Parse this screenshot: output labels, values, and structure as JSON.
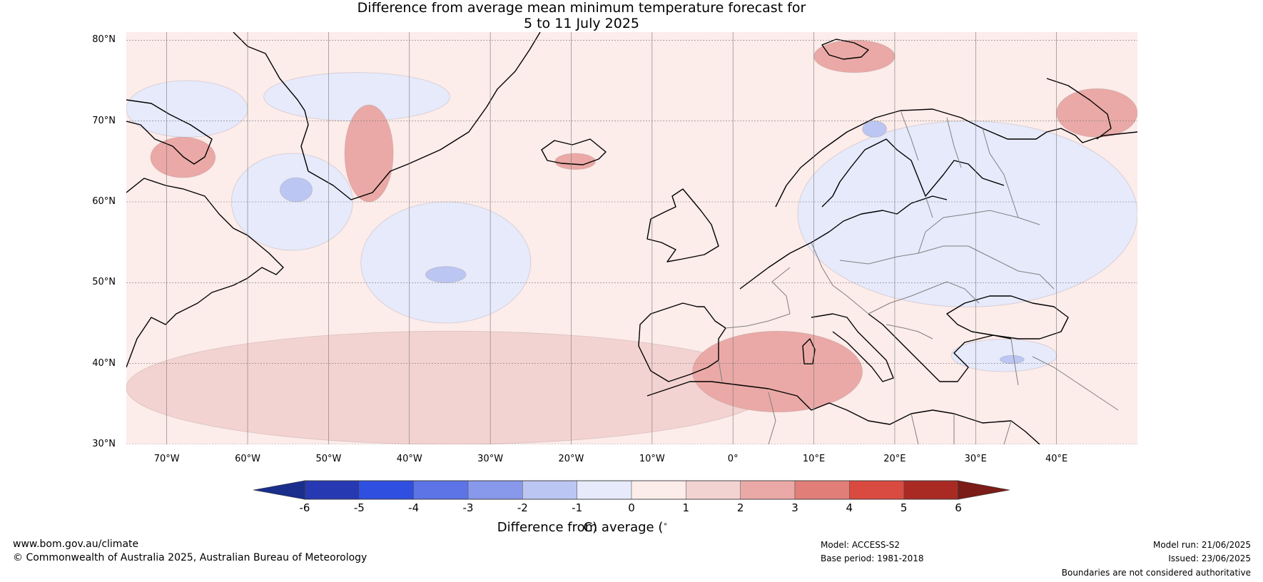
{
  "title": {
    "line1": "Difference from average mean minimum temperature forecast for",
    "line2": "5 to 11 July 2025"
  },
  "map": {
    "projection": "equirectangular",
    "lon_range": [
      -75,
      50
    ],
    "lat_range": [
      30,
      81
    ],
    "gridlines": true,
    "lat_labels": [
      "80°N",
      "70°N",
      "60°N",
      "50°N",
      "40°N",
      "30°N"
    ],
    "lat_values": [
      80,
      70,
      60,
      50,
      40,
      30
    ],
    "lon_labels": [
      "70°W",
      "60°W",
      "50°W",
      "40°W",
      "30°W",
      "20°W",
      "10°W",
      "0°",
      "10°E",
      "20°E",
      "30°E",
      "40°E"
    ],
    "lon_values": [
      -70,
      -60,
      -50,
      -40,
      -30,
      -20,
      -10,
      0,
      10,
      20,
      30,
      40
    ],
    "background_class": "0 to 1",
    "anomaly_regions": [
      {
        "name": "Arctic north of Greenland",
        "class": "-1 to 0",
        "lon": [
          -58,
          -35
        ],
        "lat": [
          70,
          76
        ]
      },
      {
        "name": "Baffin Bay",
        "class": "-1 to 0",
        "lon": [
          -75,
          -60
        ],
        "lat": [
          68,
          75
        ]
      },
      {
        "name": "Labrador Sea",
        "class": "-1 to 0",
        "lon": [
          -62,
          -47
        ],
        "lat": [
          54,
          66
        ]
      },
      {
        "name": "Labrador Sea core",
        "class": "-2 to -1",
        "lon": [
          -56,
          -52
        ],
        "lat": [
          60,
          63
        ]
      },
      {
        "name": "Central North Atlantic",
        "class": "-1 to 0",
        "lon": [
          -46,
          -25
        ],
        "lat": [
          45,
          60
        ]
      },
      {
        "name": "Central North Atlantic core",
        "class": "-2 to -1",
        "lon": [
          -38,
          -33
        ],
        "lat": [
          50,
          52
        ]
      },
      {
        "name": "Scandinavia and Eastern Europe",
        "class": "-1 to 0",
        "lon": [
          8,
          50
        ],
        "lat": [
          47,
          70
        ]
      },
      {
        "name": "Northern Scandinavia core",
        "class": "-2 to -1",
        "lon": [
          16,
          19
        ],
        "lat": [
          68,
          70
        ]
      },
      {
        "name": "Black Sea area",
        "class": "-1 to 0",
        "lon": [
          27,
          40
        ],
        "lat": [
          39,
          43
        ]
      },
      {
        "name": "Black Sea core",
        "class": "-2 to -1",
        "lon": [
          33,
          36
        ],
        "lat": [
          40,
          41
        ]
      },
      {
        "name": "Southern Atlantic band",
        "class": "1 to 2",
        "lon": [
          -75,
          5
        ],
        "lat": [
          30,
          44
        ]
      },
      {
        "name": "Western Mediterranean",
        "class": "2 to 3",
        "lon": [
          -5,
          16
        ],
        "lat": [
          34,
          44
        ]
      },
      {
        "name": "Baffin Island",
        "class": "2 to 3",
        "lon": [
          -72,
          -64
        ],
        "lat": [
          63,
          68
        ]
      },
      {
        "name": "East Greenland coast",
        "class": "2 to 3",
        "lon": [
          -48,
          -42
        ],
        "lat": [
          60,
          72
        ]
      },
      {
        "name": "Iceland",
        "class": "2 to 3",
        "lon": [
          -22,
          -17
        ],
        "lat": [
          64,
          66
        ]
      },
      {
        "name": "Svalbard",
        "class": "2 to 3",
        "lon": [
          10,
          20
        ],
        "lat": [
          76,
          80
        ]
      },
      {
        "name": "Barents Sea east",
        "class": "2 to 3",
        "lon": [
          40,
          50
        ],
        "lat": [
          68,
          74
        ]
      }
    ]
  },
  "colorbar": {
    "tick_labels": [
      "-6",
      "-5",
      "-4",
      "-3",
      "-2",
      "-1",
      "0",
      "1",
      "2",
      "3",
      "4",
      "5",
      "6"
    ],
    "colors": [
      "#1a2e8c",
      "#2639b3",
      "#2f4fe0",
      "#5c74e6",
      "#8898ea",
      "#bcc6f2",
      "#e6eafb",
      "#fcecea",
      "#f3d3d1",
      "#eaa9a6",
      "#e27e78",
      "#d94a40",
      "#a82a23",
      "#7b1c18"
    ],
    "label": "Difference from average (",
    "label_symbol": "∘",
    "label_unit": "C)"
  },
  "footer": {
    "website": "www.bom.gov.au/climate",
    "copyright": "© Commonwealth of Australia 2025, Australian Bureau of Meteorology",
    "model": "Model: ACCESS-S2",
    "base_period": "Base period: 1981-2018",
    "model_run": "Model run: 21/06/2025",
    "issued": "Issued: 23/06/2025",
    "disclaimer": "Boundaries are not considered authoritative"
  }
}
